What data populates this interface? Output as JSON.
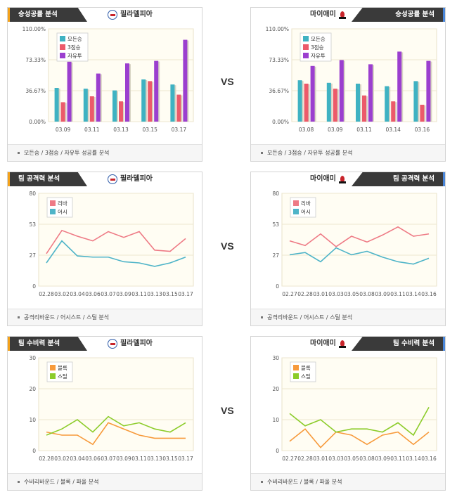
{
  "vs_label": "VS",
  "teams": {
    "left": "필라델피아",
    "right": "마이애미"
  },
  "sections": {
    "win": "승성공률 분석",
    "attack": "팀 공격력 분석",
    "defense": "팀 수비력 분석"
  },
  "footers": {
    "win": "모든승 / 3점승 / 자유투 성공률 분석",
    "attack": "공격리바운드 / 어시스트 / 스틸 분석",
    "defense": "수비리바운드 / 블록 / 파울 분석"
  },
  "colors": {
    "bar1": "#3fb2c2",
    "bar2": "#ec5a6a",
    "bar3": "#9b3fcf",
    "reb": "#ee7a85",
    "ast": "#4eb4c8",
    "blk": "#f79a3b",
    "stl": "#8ccc2a",
    "accent_orange": "#f4a21b",
    "accent_blue": "#4a86d9"
  },
  "chart_data": [
    {
      "id": "win-left",
      "type": "bar",
      "categories": [
        "03.09",
        "03.11",
        "03.13",
        "03.15",
        "03.17"
      ],
      "series": [
        {
          "name": "모든승",
          "values": [
            40,
            39,
            37,
            50,
            44
          ]
        },
        {
          "name": "3점승",
          "values": [
            23,
            30,
            24,
            48,
            32
          ]
        },
        {
          "name": "자유투",
          "values": [
            71,
            57,
            69,
            72,
            97
          ]
        }
      ],
      "yticks": [
        "110.00%",
        "73.33%",
        "36.67%",
        "0.00%"
      ],
      "ylim": [
        0,
        110
      ],
      "legend": "top-left"
    },
    {
      "id": "win-right",
      "type": "bar",
      "categories": [
        "03.08",
        "03.09",
        "03.11",
        "03.14",
        "03.16"
      ],
      "series": [
        {
          "name": "모든승",
          "values": [
            49,
            46,
            45,
            42,
            48
          ]
        },
        {
          "name": "3점승",
          "values": [
            45,
            39,
            31,
            24,
            20
          ]
        },
        {
          "name": "자유투",
          "values": [
            66,
            73,
            68,
            83,
            72
          ]
        }
      ],
      "yticks": [
        "110.00%",
        "73.33%",
        "36.67%",
        "0.00%"
      ],
      "ylim": [
        0,
        110
      ],
      "legend": "top-left"
    },
    {
      "id": "attack-left",
      "type": "line",
      "categories": [
        "02.28",
        "03.02",
        "03.04",
        "03.06",
        "03.07",
        "03.09",
        "03.11",
        "03.13",
        "03.15",
        "03.17"
      ],
      "series": [
        {
          "name": "리바",
          "values": [
            28,
            48,
            43,
            39,
            47,
            42,
            47,
            31,
            30,
            41
          ]
        },
        {
          "name": "어시",
          "values": [
            20,
            39,
            26,
            25,
            25,
            21,
            20,
            17,
            20,
            25
          ]
        }
      ],
      "yticks": [
        "80",
        "53",
        "27",
        "0"
      ],
      "ylim": [
        0,
        80
      ],
      "legend": "top-left"
    },
    {
      "id": "attack-right",
      "type": "line",
      "categories": [
        "02.27",
        "02.28",
        "03.01",
        "03.03",
        "03.05",
        "03.08",
        "03.09",
        "03.11",
        "03.14",
        "03.16"
      ],
      "series": [
        {
          "name": "리바",
          "values": [
            39,
            35,
            45,
            34,
            43,
            38,
            44,
            51,
            43,
            45
          ]
        },
        {
          "name": "어시",
          "values": [
            27,
            29,
            21,
            33,
            27,
            30,
            25,
            21,
            19,
            24
          ]
        }
      ],
      "yticks": [
        "80",
        "53",
        "27",
        "0"
      ],
      "ylim": [
        0,
        80
      ],
      "legend": "top-left"
    },
    {
      "id": "defense-left",
      "type": "line",
      "categories": [
        "02.28",
        "03.02",
        "03.04",
        "03.06",
        "03.07",
        "03.09",
        "03.11",
        "03.13",
        "03.15",
        "03.17"
      ],
      "series": [
        {
          "name": "블록",
          "values": [
            6,
            5,
            5,
            2,
            9,
            7,
            5,
            4,
            4,
            4
          ]
        },
        {
          "name": "스틸",
          "values": [
            5,
            7,
            10,
            6,
            11,
            8,
            9,
            7,
            6,
            9
          ]
        }
      ],
      "yticks": [
        "30",
        "20",
        "10",
        "0"
      ],
      "ylim": [
        0,
        30
      ],
      "legend": "top-left"
    },
    {
      "id": "defense-right",
      "type": "line",
      "categories": [
        "02.27",
        "02.28",
        "03.01",
        "03.03",
        "03.05",
        "03.08",
        "03.09",
        "03.11",
        "03.14",
        "03.16"
      ],
      "series": [
        {
          "name": "블록",
          "values": [
            3,
            7,
            1,
            6,
            5,
            2,
            5,
            6,
            2,
            6
          ]
        },
        {
          "name": "스틸",
          "values": [
            12,
            8,
            10,
            6,
            7,
            7,
            6,
            9,
            5,
            14
          ]
        }
      ],
      "yticks": [
        "30",
        "20",
        "10",
        "0"
      ],
      "ylim": [
        0,
        30
      ],
      "legend": "top-left"
    }
  ]
}
